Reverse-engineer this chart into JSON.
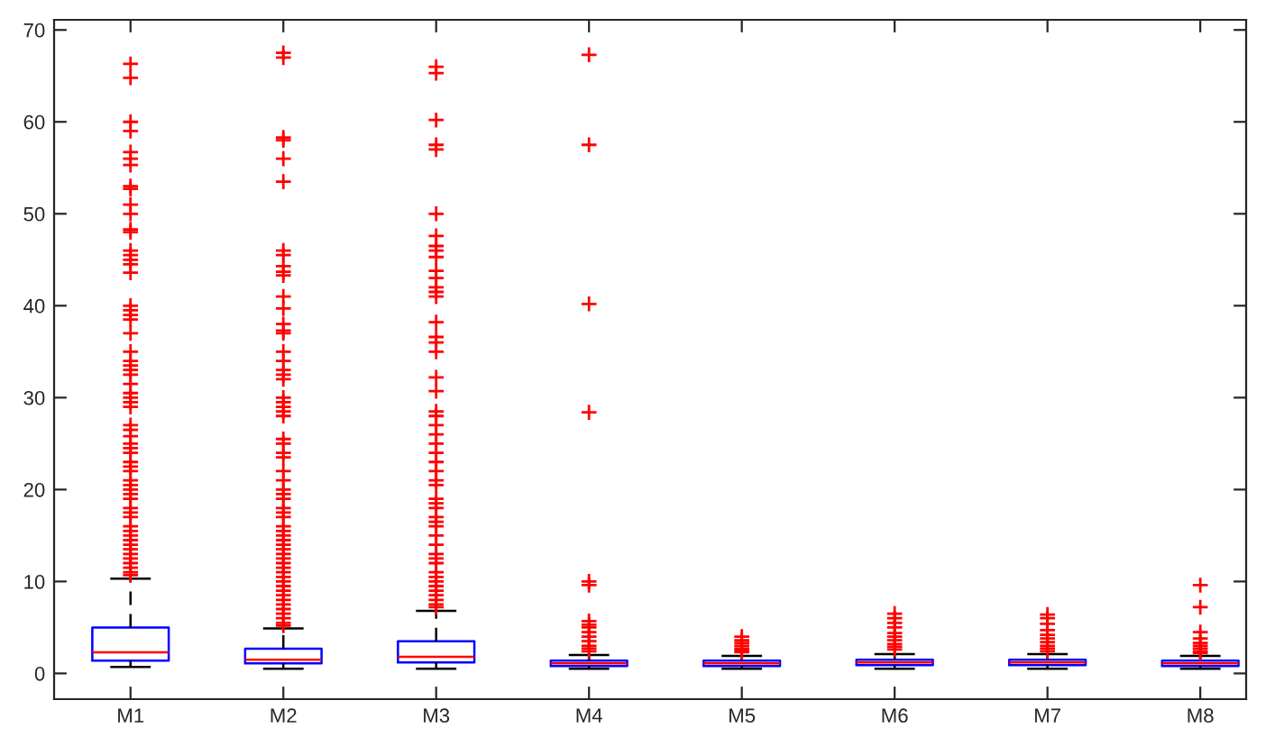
{
  "chart_data": {
    "type": "box",
    "categories": [
      "M1",
      "M2",
      "M3",
      "M4",
      "M5",
      "M6",
      "M7",
      "M8"
    ],
    "boxes": [
      {
        "low": 0.7,
        "q1": 1.4,
        "median": 2.3,
        "q3": 5.0,
        "high": 10.3,
        "outliers": [
          66.3,
          64.8,
          60,
          59,
          56.7,
          56,
          55.3,
          53,
          52.7,
          51,
          50,
          48.3,
          48,
          46,
          45.5,
          45,
          44.5,
          43.6,
          40,
          39.5,
          39,
          38.5,
          37,
          35,
          34,
          33.5,
          33,
          32.5,
          31.5,
          30.5,
          30,
          29.5,
          29,
          27,
          26.5,
          25.8,
          25,
          24.5,
          24,
          23,
          22.5,
          22,
          21,
          20.5,
          20,
          19.5,
          19,
          18,
          17.5,
          17,
          16,
          15.5,
          15,
          14.5,
          14,
          13.5,
          13,
          12.5,
          12,
          11.5,
          11,
          10.7
        ]
      },
      {
        "low": 0.5,
        "q1": 1.1,
        "median": 1.5,
        "q3": 2.7,
        "high": 4.9,
        "outliers": [
          67.5,
          67,
          58.3,
          58,
          56,
          53.5,
          46,
          45.5,
          44.3,
          43.7,
          43.3,
          41,
          39.7,
          38,
          37.3,
          37,
          35,
          34,
          33,
          32.5,
          32,
          30,
          29.5,
          29,
          28.5,
          28,
          25.5,
          25,
          24,
          23.5,
          22,
          21,
          20,
          19.5,
          19,
          18,
          17.5,
          17,
          16,
          15.5,
          15,
          14.5,
          14,
          13.5,
          13,
          12.5,
          12,
          11.5,
          11,
          10.5,
          10,
          9.5,
          9,
          8.5,
          8,
          7.5,
          7,
          6.5,
          6,
          5.5,
          5.2
        ]
      },
      {
        "low": 0.5,
        "q1": 1.2,
        "median": 1.8,
        "q3": 3.5,
        "high": 6.8,
        "outliers": [
          66,
          65.3,
          60.2,
          57.5,
          57,
          50,
          47.6,
          46.5,
          46,
          45.3,
          43.8,
          43,
          42,
          41.5,
          41,
          38.2,
          36.6,
          36,
          35,
          32.2,
          30.7,
          28.5,
          28,
          27,
          26,
          25,
          24,
          23,
          22,
          21,
          20.5,
          19,
          18.5,
          18,
          17,
          16.5,
          16,
          15,
          14,
          13,
          12.5,
          12,
          11,
          10.5,
          10,
          9.5,
          9,
          8.5,
          8,
          7.5,
          7.2
        ]
      },
      {
        "low": 0.5,
        "q1": 0.8,
        "median": 1.1,
        "q3": 1.4,
        "high": 2.0,
        "outliers": [
          67.3,
          57.5,
          40.2,
          28.4,
          10,
          9.6,
          5.7,
          5.3,
          5,
          4.5,
          4,
          3.5,
          3,
          2.7,
          2.4
        ]
      },
      {
        "low": 0.5,
        "q1": 0.8,
        "median": 1.1,
        "q3": 1.4,
        "high": 1.9,
        "outliers": [
          4,
          3.6,
          3.3,
          3,
          2.7,
          2.5,
          2.3
        ]
      },
      {
        "low": 0.5,
        "q1": 0.9,
        "median": 1.2,
        "q3": 1.5,
        "high": 2.1,
        "outliers": [
          6.5,
          6,
          5.5,
          5,
          4.4,
          4,
          3.6,
          3.2,
          2.9,
          2.6
        ]
      },
      {
        "low": 0.5,
        "q1": 0.9,
        "median": 1.2,
        "q3": 1.5,
        "high": 2.1,
        "outliers": [
          6.4,
          6,
          5.4,
          4.7,
          4.2,
          3.8,
          3.4,
          3,
          2.7,
          2.4
        ]
      },
      {
        "low": 0.5,
        "q1": 0.8,
        "median": 1.1,
        "q3": 1.4,
        "high": 1.9,
        "outliers": [
          9.6,
          7.2,
          4.5,
          3.8,
          3.3,
          3,
          2.7,
          2.4,
          2.2
        ]
      }
    ],
    "color": "#0000ff",
    "marker": "cross",
    "ylim": [
      -2.8,
      71.1
    ],
    "yticks": [
      0,
      10,
      20,
      30,
      40,
      50,
      60,
      70
    ],
    "grid": false
  }
}
